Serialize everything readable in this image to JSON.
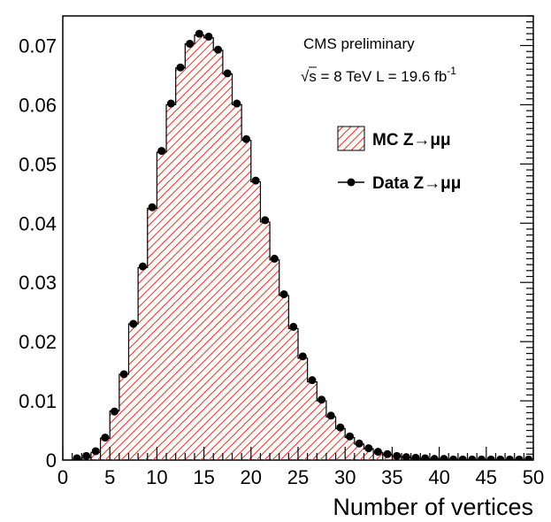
{
  "chart_data": {
    "type": "bar",
    "title": "",
    "xlabel": "Number of vertices",
    "ylabel": "",
    "xlim": [
      0,
      50
    ],
    "ylim": [
      0,
      0.075
    ],
    "x_ticks": [
      0,
      5,
      10,
      15,
      20,
      25,
      30,
      35,
      40,
      45,
      50
    ],
    "x_tick_labels": [
      "0",
      "5",
      "10",
      "15",
      "20",
      "25",
      "30",
      "35",
      "40",
      "45",
      "50"
    ],
    "y_ticks": [
      0,
      0.01,
      0.02,
      0.03,
      0.04,
      0.05,
      0.06,
      0.07
    ],
    "y_tick_labels": [
      "0",
      "0.01",
      "0.02",
      "0.03",
      "0.04",
      "0.05",
      "0.06",
      "0.07"
    ],
    "bin_edges": [
      0,
      1,
      2,
      3,
      4,
      5,
      6,
      7,
      8,
      9,
      10,
      11,
      12,
      13,
      14,
      15,
      16,
      17,
      18,
      19,
      20,
      21,
      22,
      23,
      24,
      25,
      26,
      27,
      28,
      29,
      30,
      31,
      32,
      33,
      34,
      35,
      36,
      37,
      38,
      39,
      40,
      41,
      42,
      43,
      44,
      45,
      46,
      47,
      48,
      49,
      50
    ],
    "annotations": [
      {
        "text": "CMS preliminary"
      },
      {
        "text": "√s = 8 TeV L = 19.6 fb",
        "superscript": "-1"
      }
    ],
    "legend_position": "top-right",
    "series": [
      {
        "name": "MC Z→μμ",
        "style": "hatched-histogram",
        "color": "#e8392f",
        "values": [
          0,
          0,
          0.0004,
          0.0013,
          0.0037,
          0.0083,
          0.0145,
          0.023,
          0.0325,
          0.0425,
          0.052,
          0.06,
          0.0662,
          0.0703,
          0.0718,
          0.0713,
          0.0692,
          0.0652,
          0.06,
          0.054,
          0.047,
          0.0402,
          0.0338,
          0.0278,
          0.0222,
          0.0172,
          0.0132,
          0.01,
          0.0073,
          0.0053,
          0.0038,
          0.0027,
          0.0019,
          0.0013,
          0.0009,
          0.0006,
          0.0004,
          0.0003,
          0.0002,
          0.0002,
          0.0001,
          0.0001,
          0.0001,
          0.0001,
          0.0001,
          0,
          0,
          0,
          0,
          0
        ]
      },
      {
        "name": "Data Z→μμ",
        "style": "markers",
        "color": "#000000",
        "x": [
          1.5,
          2.5,
          3.5,
          4.5,
          5.5,
          6.5,
          7.5,
          8.5,
          9.5,
          10.5,
          11.5,
          12.5,
          13.5,
          14.5,
          15.5,
          16.5,
          17.5,
          18.5,
          19.5,
          20.5,
          21.5,
          22.5,
          23.5,
          24.5,
          25.5,
          26.5,
          27.5,
          28.5,
          29.5,
          30.5,
          31.5,
          32.5,
          33.5,
          34.5,
          35.5,
          36.5,
          37.5,
          38.5,
          39.5,
          40.5,
          41.5,
          42.5,
          43.5,
          44.5,
          45.5,
          46.5,
          47.5,
          48.5,
          49.5
        ],
        "values": [
          0.0003,
          0.0007,
          0.0015,
          0.0038,
          0.0082,
          0.0145,
          0.023,
          0.0327,
          0.0427,
          0.0522,
          0.0602,
          0.0663,
          0.0703,
          0.072,
          0.0715,
          0.0693,
          0.0653,
          0.0602,
          0.0542,
          0.0472,
          0.0405,
          0.034,
          0.028,
          0.0225,
          0.0175,
          0.0135,
          0.0102,
          0.0075,
          0.0055,
          0.004,
          0.0028,
          0.002,
          0.0014,
          0.001,
          0.0007,
          0.0005,
          0.0004,
          0.0003,
          0.0002,
          0.0002,
          0.0001,
          0.0001,
          0.0001,
          0.0001,
          0.0001,
          0.0001,
          0.0001,
          0.0001,
          0.0001
        ]
      }
    ]
  }
}
